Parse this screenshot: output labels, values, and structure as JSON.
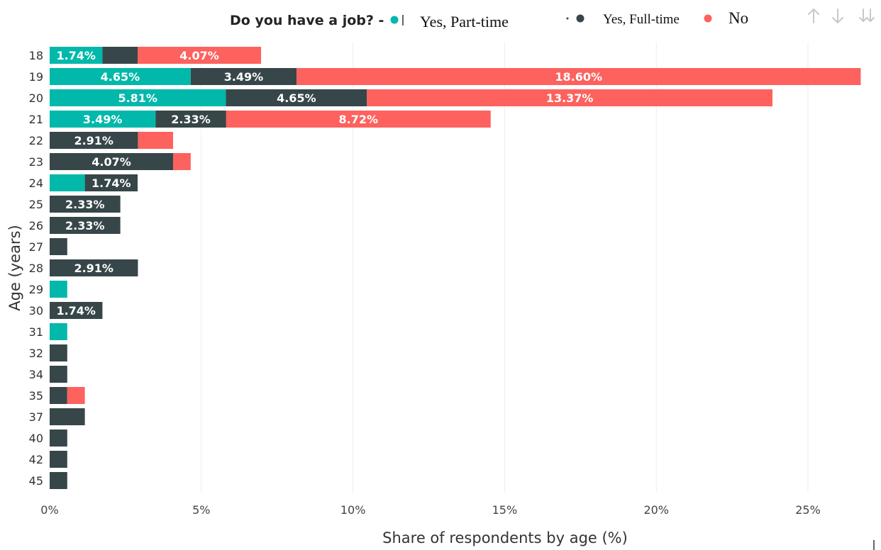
{
  "legend": {
    "title": "Do you have a job? -",
    "items": [
      {
        "label": "Yes, Part-time",
        "color": "#01b8aa"
      },
      {
        "label": "Yes, Full-time",
        "color": "#374649"
      },
      {
        "label": "No",
        "color": "#fd625e"
      }
    ]
  },
  "toolbar": {
    "icons": [
      "sort-ascending-icon",
      "sort-descending-icon",
      "expand-all-down-icon"
    ]
  },
  "chart_data": {
    "type": "bar",
    "orientation": "horizontal",
    "stacked": true,
    "categories": [
      "18",
      "19",
      "20",
      "21",
      "22",
      "23",
      "24",
      "25",
      "26",
      "27",
      "28",
      "29",
      "30",
      "31",
      "32",
      "34",
      "35",
      "37",
      "40",
      "42",
      "45"
    ],
    "series": [
      {
        "name": "Yes, Part-time",
        "color": "#01b8aa",
        "values": [
          1.74,
          4.65,
          5.81,
          3.49,
          0,
          0,
          1.16,
          0,
          0,
          0,
          0,
          0.58,
          0,
          0.58,
          0,
          0,
          0,
          0,
          0,
          0,
          0
        ],
        "labels": [
          "1.74%",
          "4.65%",
          "5.81%",
          "3.49%",
          "",
          "",
          "",
          "",
          "",
          "",
          "",
          "",
          "",
          "",
          "",
          "",
          "",
          "",
          "",
          "",
          ""
        ]
      },
      {
        "name": "Yes, Full-time",
        "color": "#374649",
        "values": [
          1.16,
          3.49,
          4.65,
          2.33,
          2.91,
          4.07,
          1.74,
          2.33,
          2.33,
          0.58,
          2.91,
          0,
          1.74,
          0,
          0.58,
          0.58,
          0.58,
          1.16,
          0.58,
          0.58,
          0.58
        ],
        "labels": [
          "",
          "3.49%",
          "4.65%",
          "2.33%",
          "2.91%",
          "4.07%",
          "1.74%",
          "2.33%",
          "2.33%",
          "",
          "2.91%",
          "",
          "1.74%",
          "",
          "",
          "",
          "",
          "",
          "",
          "",
          ""
        ]
      },
      {
        "name": "No",
        "color": "#fd625e",
        "values": [
          4.07,
          18.6,
          13.37,
          8.72,
          1.16,
          0.58,
          0,
          0,
          0,
          0,
          0,
          0,
          0,
          0,
          0,
          0,
          0.58,
          0,
          0,
          0,
          0
        ],
        "labels": [
          "4.07%",
          "18.60%",
          "13.37%",
          "8.72%",
          "",
          "",
          "",
          "",
          "",
          "",
          "",
          "",
          "",
          "",
          "",
          "",
          "",
          "",
          "",
          "",
          ""
        ]
      }
    ],
    "xticks": [
      "0%",
      "5%",
      "10%",
      "15%",
      "20%",
      "25%"
    ],
    "xtick_values": [
      0,
      5,
      10,
      15,
      20,
      25
    ],
    "xlim": [
      0,
      26.8
    ],
    "xlabel": "Share of respondents by age (%)",
    "ylabel": "Age (years)",
    "grid": true,
    "legend_position": "top"
  }
}
